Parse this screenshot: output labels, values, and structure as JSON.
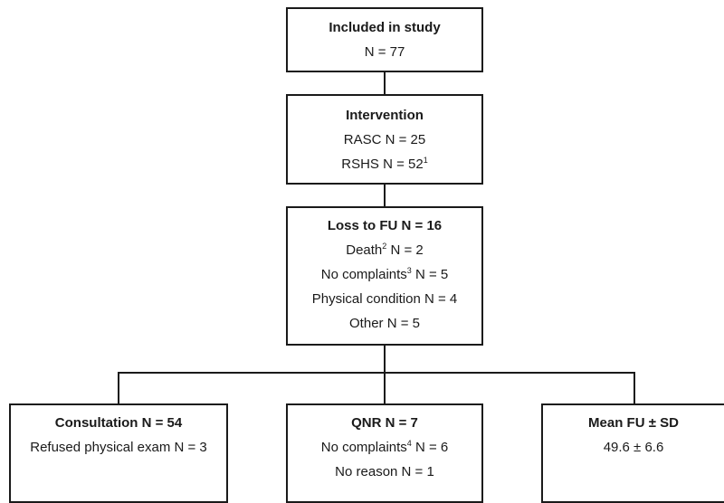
{
  "boxes": {
    "included": {
      "title": "Included in study",
      "n": "N = 77"
    },
    "intervention": {
      "title": "Intervention",
      "rasc": "RASC N = 25",
      "rshs": "RSHS N = 52",
      "rshs_note": "1"
    },
    "loss": {
      "title": "Loss to FU N = 16",
      "death_pre": "Death",
      "death_note": "2",
      "death_post": " N = 2",
      "nocomp_pre": "No complaints",
      "nocomp_note": "3",
      "nocomp_post": " N = 5",
      "physical": "Physical condition N = 4",
      "other": "Other N = 5"
    },
    "consultation": {
      "title": "Consultation N = 54",
      "refused": "Refused physical exam N = 3"
    },
    "qnr": {
      "title": "QNR N = 7",
      "nocomp_pre": "No complaints",
      "nocomp_note": "4",
      "nocomp_post": " N = 6",
      "noreason": "No reason N = 1"
    },
    "mean": {
      "title": "Mean FU ± SD",
      "value": "49.6 ± 6.6"
    }
  }
}
